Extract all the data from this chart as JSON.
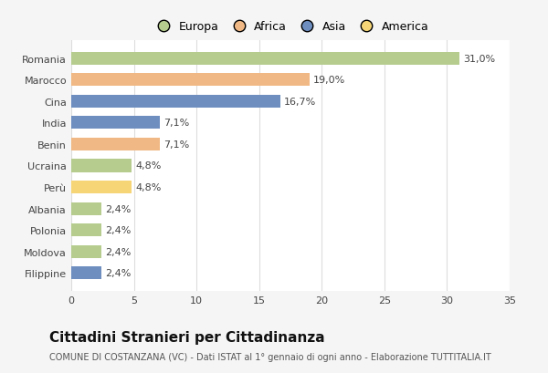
{
  "categories": [
    "Romania",
    "Marocco",
    "Cina",
    "India",
    "Benin",
    "Ucraina",
    "Perù",
    "Albania",
    "Polonia",
    "Moldova",
    "Filippine"
  ],
  "values": [
    31.0,
    19.0,
    16.7,
    7.1,
    7.1,
    4.8,
    4.8,
    2.4,
    2.4,
    2.4,
    2.4
  ],
  "labels": [
    "31,0%",
    "19,0%",
    "16,7%",
    "7,1%",
    "7,1%",
    "4,8%",
    "4,8%",
    "2,4%",
    "2,4%",
    "2,4%",
    "2,4%"
  ],
  "colors": [
    "#b5cc8e",
    "#f0b884",
    "#6d8ebf",
    "#6d8ebf",
    "#f0b884",
    "#b5cc8e",
    "#f5d576",
    "#b5cc8e",
    "#b5cc8e",
    "#b5cc8e",
    "#6d8ebf"
  ],
  "legend_labels": [
    "Europa",
    "Africa",
    "Asia",
    "America"
  ],
  "legend_colors": [
    "#b5cc8e",
    "#f0b884",
    "#6d8ebf",
    "#f5d576"
  ],
  "xlim": [
    0,
    35
  ],
  "xticks": [
    0,
    5,
    10,
    15,
    20,
    25,
    30,
    35
  ],
  "title": "Cittadini Stranieri per Cittadinanza",
  "subtitle": "COMUNE DI COSTANZANA (VC) - Dati ISTAT al 1° gennaio di ogni anno - Elaborazione TUTTITALIA.IT",
  "bg_color": "#f5f5f5",
  "plot_bg_color": "#ffffff",
  "grid_color": "#dddddd",
  "title_fontsize": 11,
  "subtitle_fontsize": 7,
  "label_fontsize": 8,
  "tick_fontsize": 8,
  "legend_fontsize": 9
}
